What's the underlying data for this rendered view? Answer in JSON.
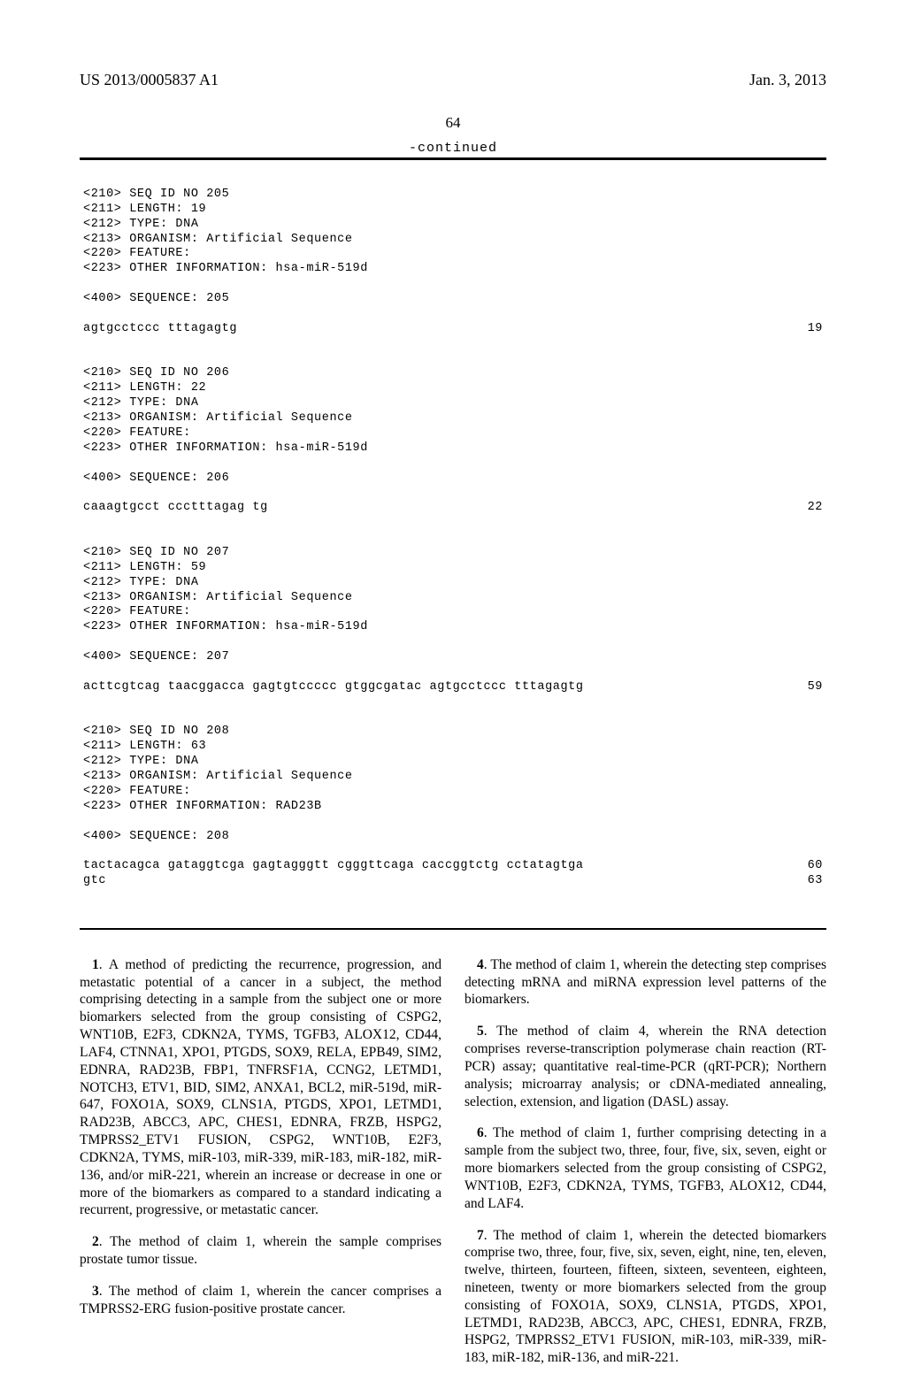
{
  "header": {
    "pub_number": "US 2013/0005837 A1",
    "pub_date": "Jan. 3, 2013"
  },
  "page_number": "64",
  "continued_label": "-continued",
  "sequences": [
    {
      "id": "205",
      "length": "19",
      "type": "DNA",
      "organism": "Artificial Sequence",
      "feature": "",
      "other_info": "hsa-miR-519d",
      "lines": [
        {
          "seq": "agtgcctccc tttagagtg",
          "num": "19"
        }
      ]
    },
    {
      "id": "206",
      "length": "22",
      "type": "DNA",
      "organism": "Artificial Sequence",
      "feature": "",
      "other_info": "hsa-miR-519d",
      "lines": [
        {
          "seq": "caaagtgcct ccctttagag tg",
          "num": "22"
        }
      ]
    },
    {
      "id": "207",
      "length": "59",
      "type": "DNA",
      "organism": "Artificial Sequence",
      "feature": "",
      "other_info": "hsa-miR-519d",
      "lines": [
        {
          "seq": "acttcgtcag taacggacca gagtgtccccc gtggcgatac agtgcctccc tttagagtg",
          "num": "59"
        }
      ]
    },
    {
      "id": "208",
      "length": "63",
      "type": "DNA",
      "organism": "Artificial Sequence",
      "feature": "",
      "other_info": "RAD23B",
      "lines": [
        {
          "seq": "tactacagca gataggtcga gagtagggtt cgggttcaga caccggtctg cctatagtga",
          "num": "60"
        },
        {
          "seq": "gtc",
          "num": "63"
        }
      ]
    }
  ],
  "labels": {
    "seq_id": "<210> SEQ ID NO",
    "length": "<211> LENGTH:",
    "type": "<212> TYPE:",
    "organism": "<213> ORGANISM:",
    "feature": "<220> FEATURE:",
    "other": "<223> OTHER INFORMATION:",
    "sequence": "<400> SEQUENCE:"
  },
  "claims_left": [
    {
      "num": "1",
      "text": ". A method of predicting the recurrence, progression, and metastatic potential of a cancer in a subject, the method comprising detecting in a sample from the subject one or more biomarkers selected from the group consisting of CSPG2, WNT10B, E2F3, CDKN2A, TYMS, TGFB3, ALOX12, CD44, LAF4, CTNNA1, XPO1, PTGDS, SOX9, RELA, EPB49, SIM2, EDNRA, RAD23B, FBP1, TNFRSF1A, CCNG2, LETMD1, NOTCH3, ETV1, BID, SIM2, ANXA1, BCL2, miR-519d, miR-647, FOXO1A, SOX9, CLNS1A, PTGDS, XPO1, LETMD1, RAD23B, ABCC3, APC, CHES1, EDNRA, FRZB, HSPG2, TMPRSS2_ETV1 FUSION, CSPG2, WNT10B, E2F3, CDKN2A, TYMS, miR-103, miR-339, miR-183, miR-182, miR-136, and/or miR-221, wherein an increase or decrease in one or more of the biomarkers as compared to a standard indicating a recurrent, progressive, or metastatic cancer."
    },
    {
      "num": "2",
      "text": ". The method of claim 1, wherein the sample comprises prostate tumor tissue."
    },
    {
      "num": "3",
      "text": ". The method of claim 1, wherein the cancer comprises a TMPRSS2-ERG fusion-positive prostate cancer."
    }
  ],
  "claims_right": [
    {
      "num": "4",
      "text": ". The method of claim 1, wherein the detecting step comprises detecting mRNA and miRNA expression level patterns of the biomarkers."
    },
    {
      "num": "5",
      "text": ". The method of claim 4, wherein the RNA detection comprises reverse-transcription polymerase chain reaction (RT-PCR) assay; quantitative real-time-PCR (qRT-PCR); Northern analysis; microarray analysis; or cDNA-mediated annealing, selection, extension, and ligation (DASL) assay."
    },
    {
      "num": "6",
      "text": ". The method of claim 1, further comprising detecting in a sample from the subject two, three, four, five, six, seven, eight or more biomarkers selected from the group consisting of CSPG2, WNT10B, E2F3, CDKN2A, TYMS, TGFB3, ALOX12, CD44, and LAF4."
    },
    {
      "num": "7",
      "text": ". The method of claim 1, wherein the detected biomarkers comprise two, three, four, five, six, seven, eight, nine, ten, eleven, twelve, thirteen, fourteen, fifteen, sixteen, seventeen, eighteen, nineteen, twenty or more biomarkers selected from the group consisting of FOXO1A, SOX9, CLNS1A, PTGDS, XPO1, LETMD1, RAD23B, ABCC3, APC, CHES1, EDNRA, FRZB, HSPG2, TMPRSS2_ETV1 FUSION, miR-103, miR-339, miR-183, miR-182, miR-136, and miR-221."
    }
  ]
}
